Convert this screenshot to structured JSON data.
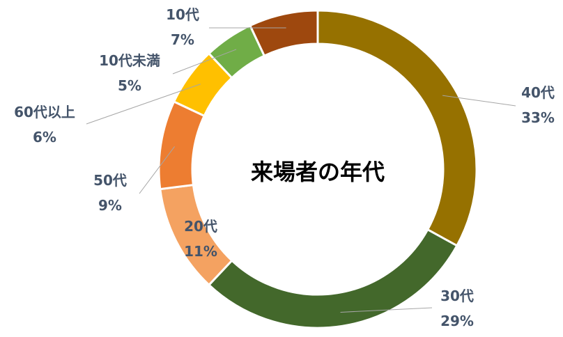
{
  "chart_data": {
    "type": "pie",
    "title": "来場者の年代",
    "slices": [
      {
        "name": "40代",
        "value": 33,
        "label": "33%",
        "color": "#967100"
      },
      {
        "name": "30代",
        "value": 29,
        "label": "29%",
        "color": "#43682b"
      },
      {
        "name": "20代",
        "value": 11,
        "label": "11%",
        "color": "#f4a261"
      },
      {
        "name": "50代",
        "value": 9,
        "label": "9%",
        "color": "#ed7d31"
      },
      {
        "name": "60代以上",
        "value": 6,
        "label": "6%",
        "color": "#ffc000"
      },
      {
        "name": "10代未満",
        "value": 5,
        "label": "5%",
        "color": "#70ad47"
      },
      {
        "name": "10代",
        "value": 7,
        "label": "7%",
        "color": "#9e480e"
      }
    ],
    "start_angle_deg": 0,
    "direction": "clockwise",
    "hole": "donut",
    "legend": "none"
  }
}
